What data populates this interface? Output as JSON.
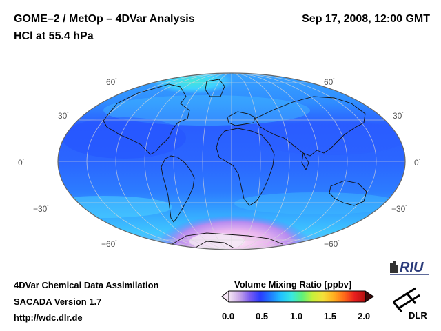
{
  "header": {
    "title": "GOME–2 / MetOp – 4DVar Analysis",
    "subtitle": "HCl at 55.4 hPa",
    "datetime": "Sep 17, 2008, 12:00 GMT"
  },
  "map": {
    "projection": "Mollweide",
    "lat_labels": {
      "left": [
        "60",
        "30",
        "0",
        "−30",
        "−60"
      ],
      "right": [
        "60",
        "30",
        "0",
        "−30",
        "−60"
      ]
    },
    "degree_symbol": "˚"
  },
  "colorbar": {
    "title": "Volume Mixing Ratio [ppbv]",
    "ticks": [
      "0.0",
      "0.5",
      "1.0",
      "1.5",
      "2.0"
    ],
    "range": [
      0.0,
      2.0
    ],
    "colors": [
      "#f5e6f5",
      "#c9a8e8",
      "#7a5cf0",
      "#2a3cff",
      "#1f7dff",
      "#21c4ff",
      "#38e8e0",
      "#5ef07a",
      "#c8f03a",
      "#f5e03a",
      "#ffb020",
      "#ff6a1a",
      "#e81e1e",
      "#b31010"
    ]
  },
  "footer": {
    "line1": "4DVar Chemical Data Assimilation",
    "line2": "SACADA Version 1.7",
    "line3": "http://wdc.dlr.de"
  },
  "logos": {
    "riu": "RIU",
    "dlr": "DLR"
  }
}
